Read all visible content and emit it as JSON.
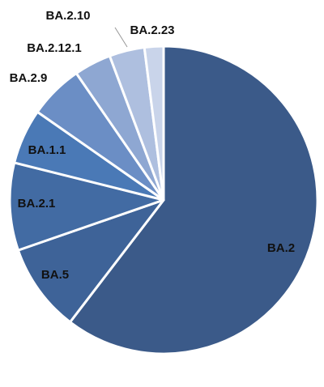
{
  "chart_data": {
    "type": "pie",
    "categories": [
      "BA.2",
      "BA.5",
      "BA.2.1",
      "BA.1.1",
      "BA.2.9",
      "BA.2.12.1",
      "BA.2.10",
      "BA.2.23"
    ],
    "values": [
      60.4,
      9.3,
      9.2,
      5.8,
      5.7,
      3.9,
      3.7,
      2.0
    ],
    "colors": [
      "#3b5a89",
      "#3e6398",
      "#426ba3",
      "#4a79b6",
      "#6b8ec5",
      "#8ea7d2",
      "#aebfdf",
      "#c9d4ea"
    ]
  }
}
